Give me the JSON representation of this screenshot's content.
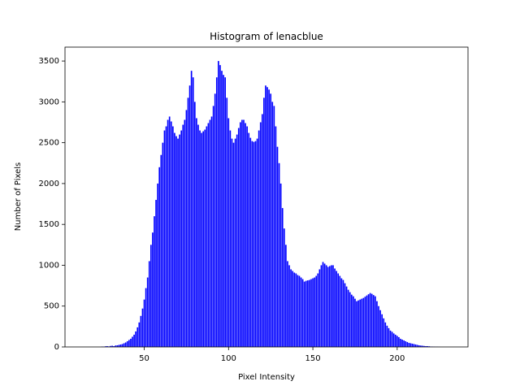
{
  "chart_data": {
    "type": "bar",
    "title": "Histogram of lenacblue",
    "xlabel": "Pixel Intensity",
    "ylabel": "Number of Pixels",
    "color": "#0000ff",
    "x": [
      25,
      26,
      27,
      28,
      29,
      30,
      31,
      32,
      33,
      34,
      35,
      36,
      37,
      38,
      39,
      40,
      41,
      42,
      43,
      44,
      45,
      46,
      47,
      48,
      49,
      50,
      51,
      52,
      53,
      54,
      55,
      56,
      57,
      58,
      59,
      60,
      61,
      62,
      63,
      64,
      65,
      66,
      67,
      68,
      69,
      70,
      71,
      72,
      73,
      74,
      75,
      76,
      77,
      78,
      79,
      80,
      81,
      82,
      83,
      84,
      85,
      86,
      87,
      88,
      89,
      90,
      91,
      92,
      93,
      94,
      95,
      96,
      97,
      98,
      99,
      100,
      101,
      102,
      103,
      104,
      105,
      106,
      107,
      108,
      109,
      110,
      111,
      112,
      113,
      114,
      115,
      116,
      117,
      118,
      119,
      120,
      121,
      122,
      123,
      124,
      125,
      126,
      127,
      128,
      129,
      130,
      131,
      132,
      133,
      134,
      135,
      136,
      137,
      138,
      139,
      140,
      141,
      142,
      143,
      144,
      145,
      146,
      147,
      148,
      149,
      150,
      151,
      152,
      153,
      154,
      155,
      156,
      157,
      158,
      159,
      160,
      161,
      162,
      163,
      164,
      165,
      166,
      167,
      168,
      169,
      170,
      171,
      172,
      173,
      174,
      175,
      176,
      177,
      178,
      179,
      180,
      181,
      182,
      183,
      184,
      185,
      186,
      187,
      188,
      189,
      190,
      191,
      192,
      193,
      194,
      195,
      196,
      197,
      198,
      199,
      200,
      201,
      202,
      203,
      204,
      205,
      206,
      207,
      208,
      209,
      210,
      211,
      212,
      213,
      214,
      215,
      216,
      217,
      218,
      219,
      220,
      221,
      222,
      223,
      224,
      225
    ],
    "values": [
      5,
      3,
      8,
      10,
      6,
      12,
      15,
      10,
      18,
      20,
      25,
      30,
      35,
      45,
      55,
      70,
      85,
      100,
      125,
      150,
      190,
      240,
      300,
      380,
      470,
      580,
      720,
      850,
      1050,
      1250,
      1400,
      1600,
      1800,
      2000,
      2200,
      2350,
      2500,
      2650,
      2700,
      2780,
      2820,
      2760,
      2700,
      2620,
      2580,
      2550,
      2600,
      2650,
      2720,
      2780,
      2900,
      3050,
      3200,
      3380,
      3300,
      3000,
      2800,
      2720,
      2650,
      2620,
      2640,
      2660,
      2700,
      2740,
      2780,
      2820,
      2950,
      3100,
      3300,
      3500,
      3450,
      3380,
      3330,
      3300,
      3050,
      2800,
      2650,
      2550,
      2500,
      2550,
      2600,
      2680,
      2750,
      2780,
      2780,
      2740,
      2700,
      2620,
      2560,
      2520,
      2510,
      2520,
      2550,
      2650,
      2750,
      2850,
      3050,
      3200,
      3180,
      3150,
      3100,
      3000,
      2950,
      2700,
      2450,
      2250,
      2000,
      1700,
      1450,
      1250,
      1050,
      1000,
      950,
      930,
      910,
      900,
      880,
      870,
      850,
      830,
      800,
      810,
      815,
      820,
      830,
      840,
      850,
      870,
      900,
      950,
      1000,
      1040,
      1020,
      1000,
      980,
      990,
      1000,
      1000,
      960,
      930,
      900,
      870,
      840,
      820,
      780,
      740,
      700,
      670,
      640,
      620,
      590,
      560,
      570,
      580,
      590,
      600,
      615,
      630,
      645,
      660,
      650,
      635,
      620,
      560,
      500,
      450,
      400,
      350,
      300,
      260,
      230,
      200,
      185,
      165,
      150,
      135,
      120,
      100,
      90,
      80,
      70,
      60,
      50,
      45,
      40,
      35,
      30,
      25,
      20,
      17,
      15,
      12,
      10,
      10,
      8,
      5,
      4,
      3,
      2,
      2,
      1
    ],
    "xlim": [
      3,
      242
    ],
    "ylim": [
      0,
      3670
    ],
    "xticks": [
      50,
      100,
      150,
      200
    ],
    "yticks": [
      0,
      500,
      1000,
      1500,
      2000,
      2500,
      3000,
      3500
    ]
  }
}
